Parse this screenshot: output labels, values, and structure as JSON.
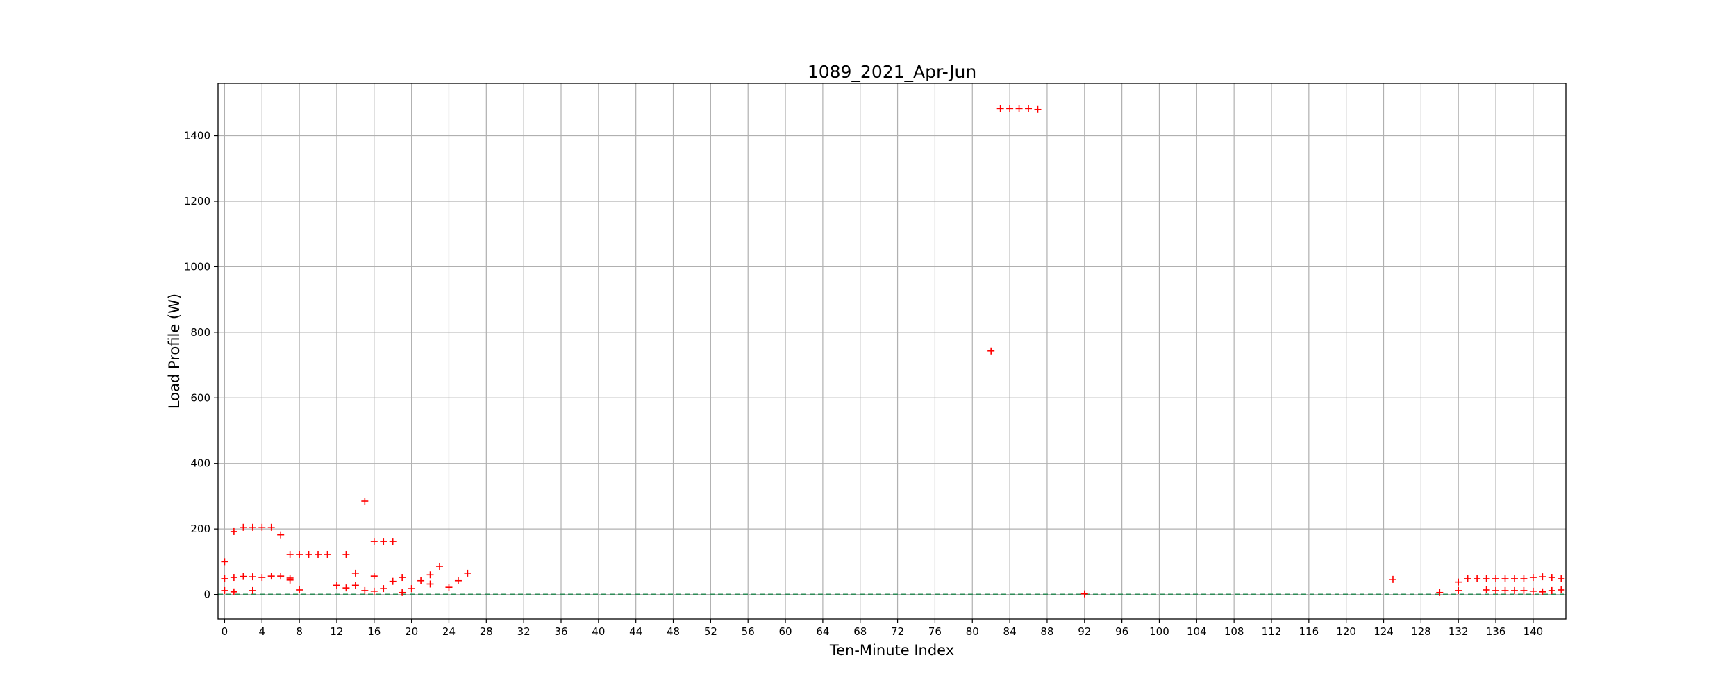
{
  "chart_data": {
    "type": "scatter",
    "title": "1089_2021_Apr-Jun",
    "xlabel": "Ten-Minute Index",
    "ylabel": "Load Profile (W)",
    "xlim": [
      -0.7,
      143.5
    ],
    "ylim": [
      -75,
      1560
    ],
    "x_ticks": [
      0,
      4,
      8,
      12,
      16,
      20,
      24,
      28,
      32,
      36,
      40,
      44,
      48,
      52,
      56,
      60,
      64,
      68,
      72,
      76,
      80,
      84,
      88,
      92,
      96,
      100,
      104,
      108,
      112,
      116,
      120,
      124,
      128,
      132,
      136,
      140
    ],
    "y_ticks": [
      0,
      200,
      400,
      600,
      800,
      1000,
      1200,
      1400
    ],
    "grid": true,
    "marker": "+",
    "colors": {
      "points": "#ff0000",
      "baseline": "#2e8b57",
      "grid": "#b0b0b0"
    },
    "baseline": {
      "value": 0,
      "style": "dashed"
    },
    "points": [
      {
        "x": 0,
        "y": 100
      },
      {
        "x": 0,
        "y": 48
      },
      {
        "x": 0,
        "y": 12
      },
      {
        "x": 1,
        "y": 192
      },
      {
        "x": 1,
        "y": 52
      },
      {
        "x": 1,
        "y": 8
      },
      {
        "x": 2,
        "y": 205
      },
      {
        "x": 2,
        "y": 55
      },
      {
        "x": 3,
        "y": 205
      },
      {
        "x": 3,
        "y": 54
      },
      {
        "x": 3,
        "y": 12
      },
      {
        "x": 4,
        "y": 205
      },
      {
        "x": 4,
        "y": 52
      },
      {
        "x": 5,
        "y": 205
      },
      {
        "x": 5,
        "y": 56
      },
      {
        "x": 6,
        "y": 182
      },
      {
        "x": 6,
        "y": 56
      },
      {
        "x": 7,
        "y": 122
      },
      {
        "x": 7,
        "y": 50
      },
      {
        "x": 7,
        "y": 44
      },
      {
        "x": 8,
        "y": 122
      },
      {
        "x": 8,
        "y": 14
      },
      {
        "x": 9,
        "y": 122
      },
      {
        "x": 10,
        "y": 122
      },
      {
        "x": 11,
        "y": 122
      },
      {
        "x": 12,
        "y": 28
      },
      {
        "x": 13,
        "y": 122
      },
      {
        "x": 13,
        "y": 20
      },
      {
        "x": 14,
        "y": 65
      },
      {
        "x": 14,
        "y": 28
      },
      {
        "x": 15,
        "y": 285
      },
      {
        "x": 15,
        "y": 12
      },
      {
        "x": 16,
        "y": 162
      },
      {
        "x": 16,
        "y": 56
      },
      {
        "x": 16,
        "y": 10
      },
      {
        "x": 17,
        "y": 162
      },
      {
        "x": 17,
        "y": 18
      },
      {
        "x": 18,
        "y": 162
      },
      {
        "x": 18,
        "y": 40
      },
      {
        "x": 19,
        "y": 52
      },
      {
        "x": 19,
        "y": 6
      },
      {
        "x": 20,
        "y": 18
      },
      {
        "x": 21,
        "y": 42
      },
      {
        "x": 22,
        "y": 60
      },
      {
        "x": 22,
        "y": 32
      },
      {
        "x": 23,
        "y": 86
      },
      {
        "x": 24,
        "y": 22
      },
      {
        "x": 25,
        "y": 42
      },
      {
        "x": 26,
        "y": 65
      },
      {
        "x": 82,
        "y": 743
      },
      {
        "x": 83,
        "y": 1483
      },
      {
        "x": 84,
        "y": 1483
      },
      {
        "x": 85,
        "y": 1483
      },
      {
        "x": 86,
        "y": 1483
      },
      {
        "x": 87,
        "y": 1480
      },
      {
        "x": 92,
        "y": 2
      },
      {
        "x": 125,
        "y": 46
      },
      {
        "x": 130,
        "y": 6
      },
      {
        "x": 132,
        "y": 38
      },
      {
        "x": 132,
        "y": 12
      },
      {
        "x": 133,
        "y": 48
      },
      {
        "x": 134,
        "y": 48
      },
      {
        "x": 135,
        "y": 48
      },
      {
        "x": 135,
        "y": 14
      },
      {
        "x": 136,
        "y": 48
      },
      {
        "x": 136,
        "y": 12
      },
      {
        "x": 137,
        "y": 48
      },
      {
        "x": 137,
        "y": 12
      },
      {
        "x": 138,
        "y": 48
      },
      {
        "x": 138,
        "y": 12
      },
      {
        "x": 139,
        "y": 48
      },
      {
        "x": 139,
        "y": 12
      },
      {
        "x": 140,
        "y": 52
      },
      {
        "x": 140,
        "y": 10
      },
      {
        "x": 141,
        "y": 54
      },
      {
        "x": 141,
        "y": 8
      },
      {
        "x": 142,
        "y": 52
      },
      {
        "x": 142,
        "y": 12
      },
      {
        "x": 143,
        "y": 48
      },
      {
        "x": 143,
        "y": 14
      }
    ]
  }
}
